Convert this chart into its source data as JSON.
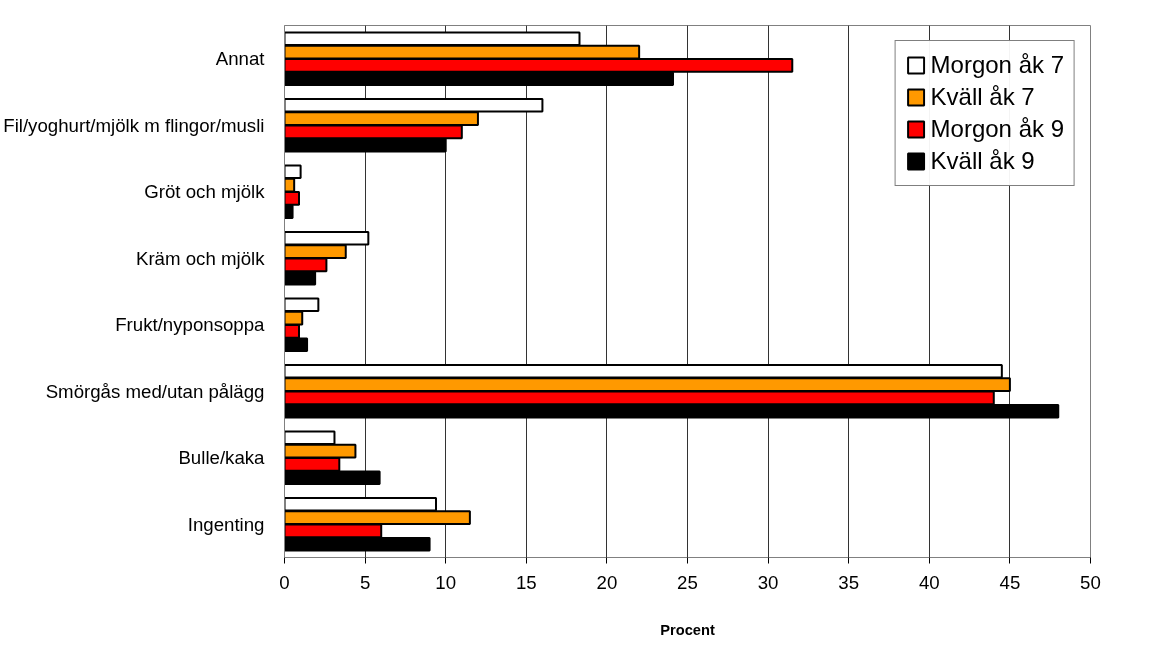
{
  "chart_data": {
    "type": "bar",
    "orientation": "horizontal",
    "xlabel": "Procent",
    "categories": [
      "Annat",
      "Fil/yoghurt/mjölk m flingor/musli",
      "Gröt och mjölk",
      "Kräm och mjölk",
      "Frukt/nyponsoppa",
      "Smörgås med/utan pålägg",
      "Bulle/kaka",
      "Ingenting"
    ],
    "series": [
      {
        "name": "Morgon åk 7",
        "color": "#ffffff",
        "values": [
          18.3,
          16.0,
          1.0,
          5.2,
          2.1,
          44.5,
          3.1,
          9.4
        ]
      },
      {
        "name": "Kväll åk 7",
        "color": "#ff9900",
        "values": [
          22.0,
          12.0,
          0.6,
          3.8,
          1.1,
          45.0,
          4.4,
          11.5
        ]
      },
      {
        "name": "Morgon åk 9",
        "color": "#ff0000",
        "values": [
          31.5,
          11.0,
          0.9,
          2.6,
          0.9,
          44.0,
          3.4,
          6.0
        ]
      },
      {
        "name": "Kväll åk 9",
        "color": "#000000",
        "values": [
          24.1,
          10.0,
          0.5,
          1.9,
          1.4,
          48.0,
          5.9,
          9.0
        ]
      }
    ],
    "xlim": [
      0,
      50
    ],
    "xticks": [
      0,
      5,
      10,
      15,
      20,
      25,
      30,
      35,
      40,
      45,
      50
    ],
    "grid": "x",
    "legend": "top right"
  }
}
